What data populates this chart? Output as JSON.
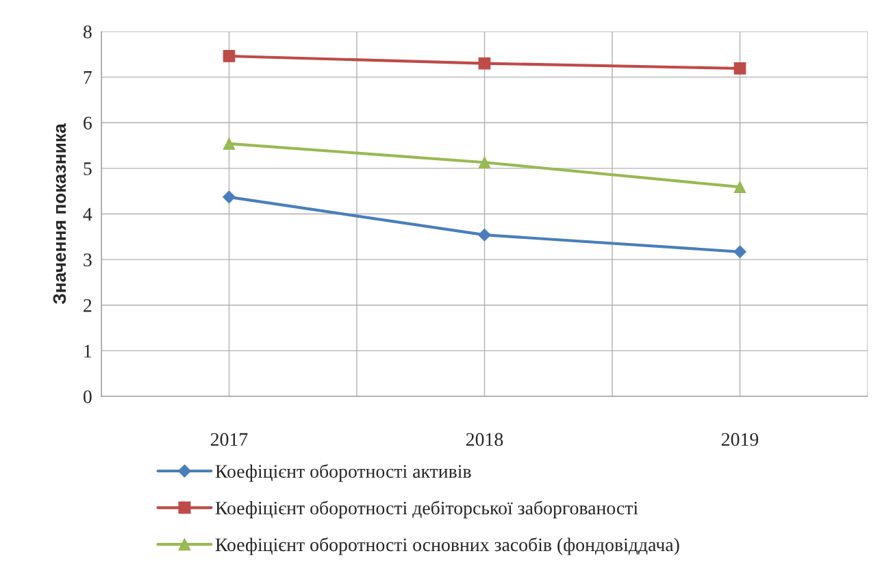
{
  "chart_data": {
    "type": "line",
    "ylabel": "Значення показника",
    "categories": [
      "2017",
      "2018",
      "2019"
    ],
    "series": [
      {
        "name": "Коефіцієнт оборотності активів",
        "color": "#4a7ebb",
        "marker": "diamond",
        "values": [
          4.37,
          3.54,
          3.17
        ]
      },
      {
        "name": "Коефіцієнт оборотності дебіторської заборгованості",
        "color": "#be4b48",
        "marker": "square",
        "values": [
          7.46,
          7.3,
          7.19
        ]
      },
      {
        "name": "Коефіцієнт оборотності основних засобів (фондовіддача)",
        "color": "#98b954",
        "marker": "triangle",
        "values": [
          5.54,
          5.13,
          4.59
        ]
      }
    ],
    "ylim": [
      0,
      8
    ],
    "yticks": [
      0,
      1,
      2,
      3,
      4,
      5,
      6,
      7,
      8
    ],
    "grid": true,
    "legend": "bottom"
  }
}
